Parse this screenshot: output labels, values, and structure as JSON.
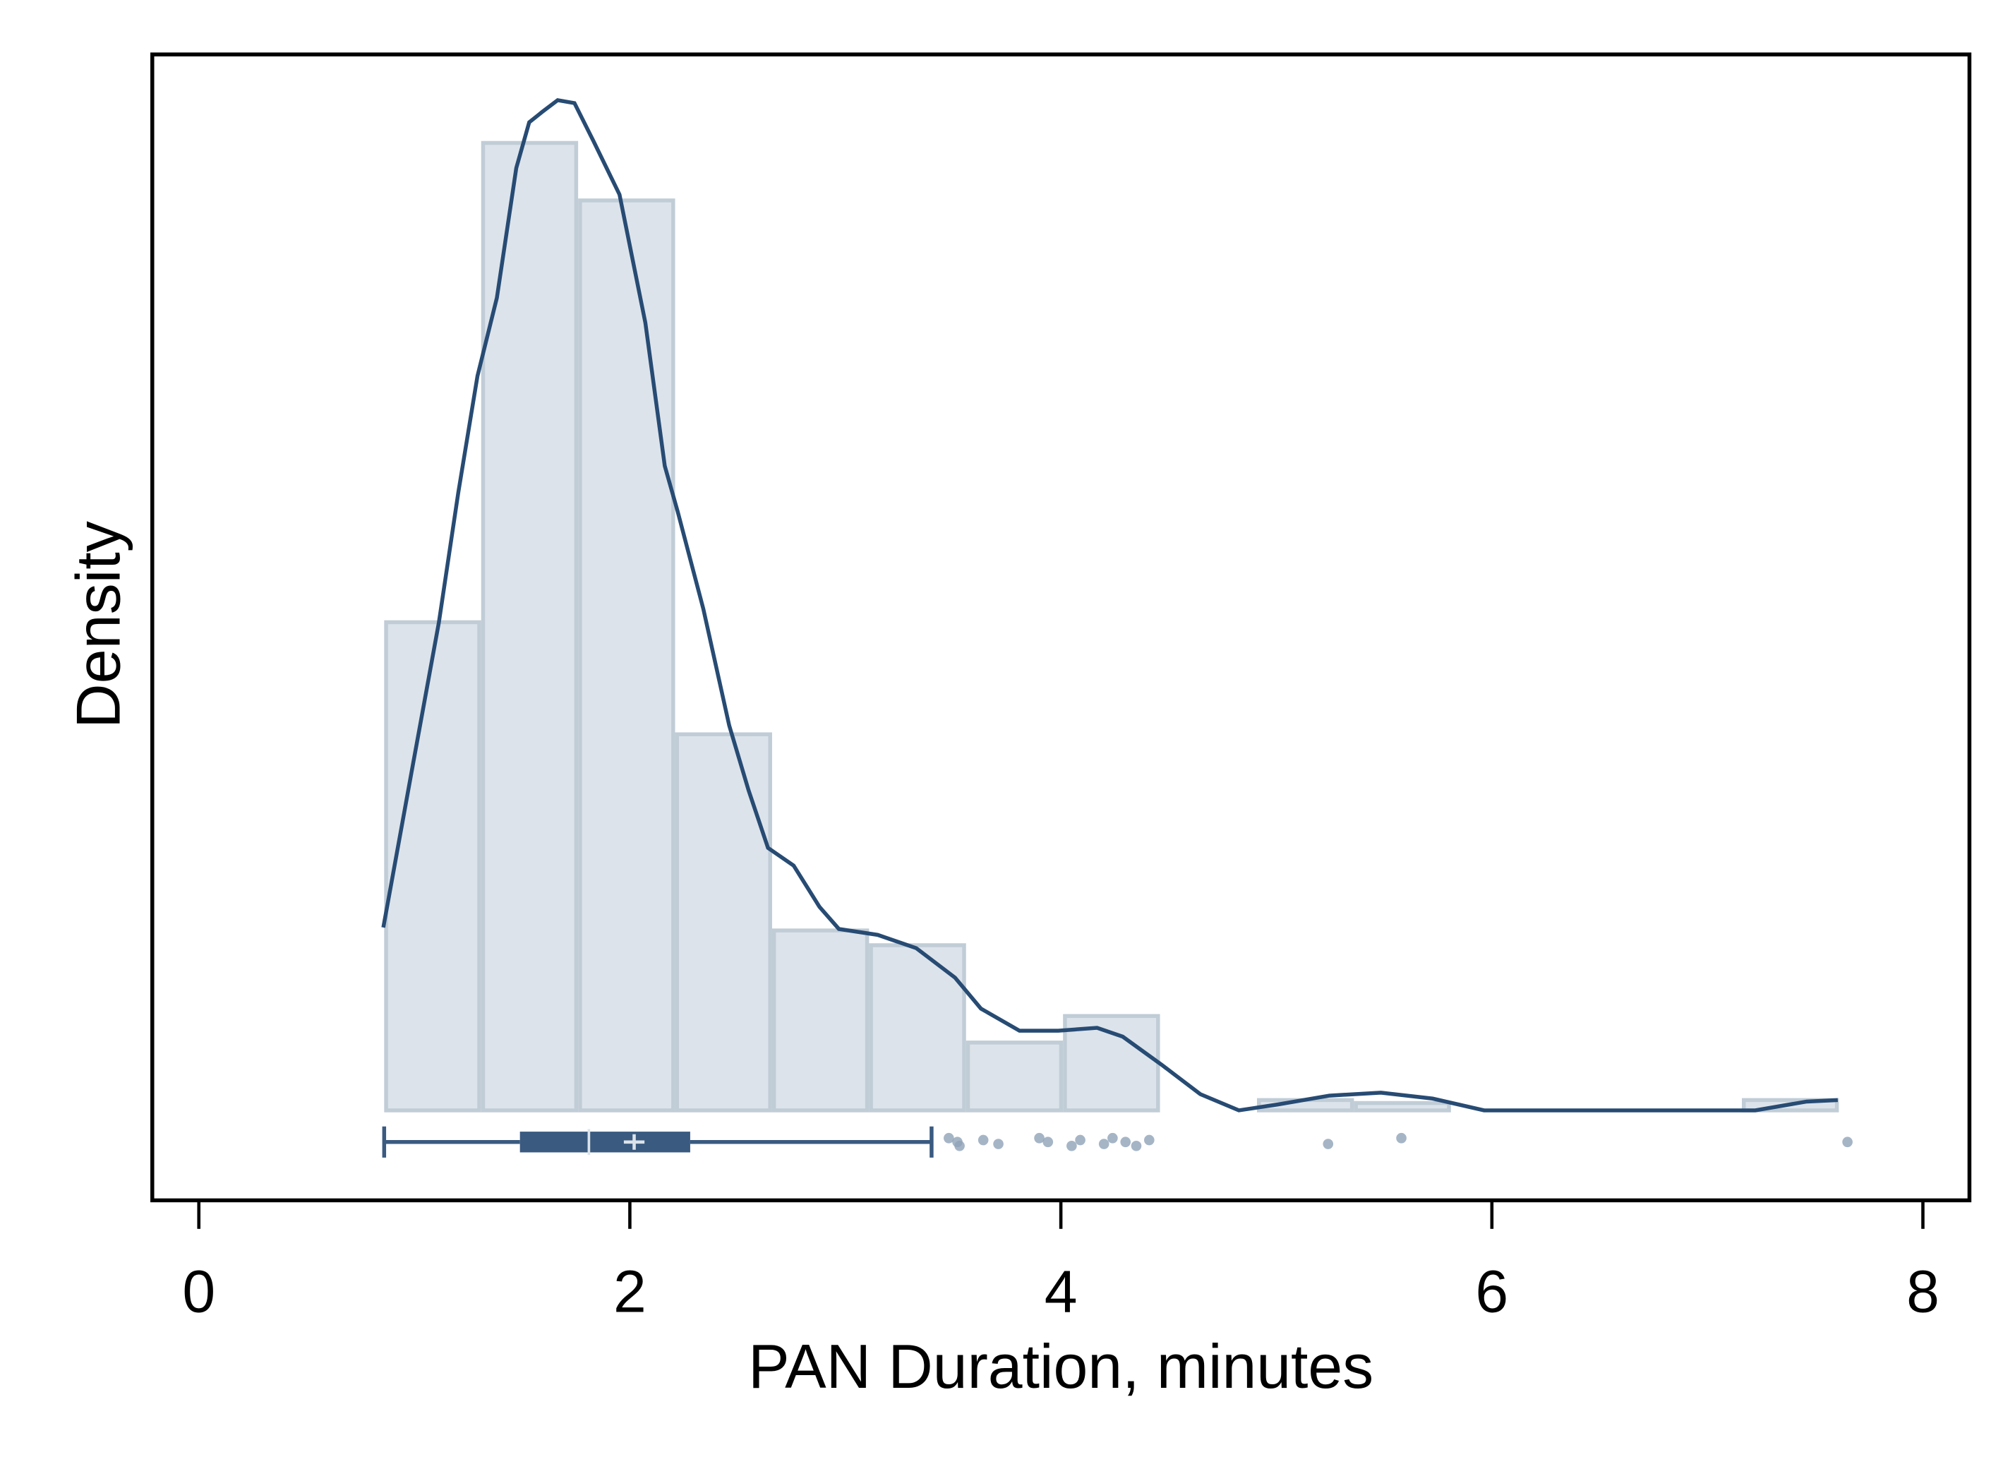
{
  "chart_data": {
    "type": "histogram",
    "x_label": "PAN Duration, minutes",
    "y_label": "Density",
    "bins": [
      0.86,
      1.31,
      1.76,
      2.21,
      2.66,
      3.11,
      3.56,
      4.01,
      4.46,
      4.91,
      5.36,
      5.81,
      6.26,
      6.71,
      7.16,
      7.61
    ],
    "values": [
      0.331,
      0.656,
      0.617,
      0.255,
      0.122,
      0.112,
      0.046,
      0.064,
      0,
      0.007,
      0.005,
      0,
      0,
      0,
      0.007
    ],
    "color": "#dce3ea",
    "edge_color": "#c0ccd6",
    "kde": {
      "color": "#274b73",
      "x": [
        0.856,
        0.994,
        1.114,
        1.204,
        1.293,
        1.383,
        1.473,
        1.533,
        1.593,
        1.665,
        1.743,
        1.832,
        1.952,
        2.072,
        2.162,
        2.222,
        2.341,
        2.461,
        2.551,
        2.641,
        2.76,
        2.88,
        2.97,
        3.15,
        3.329,
        3.509,
        3.629,
        3.808,
        3.988,
        4.168,
        4.287,
        4.467,
        4.647,
        4.826,
        5.006,
        5.246,
        5.485,
        5.725,
        5.964,
        7.222,
        7.461,
        7.605
      ],
      "y": [
        0.124,
        0.235,
        0.331,
        0.419,
        0.498,
        0.551,
        0.639,
        0.67,
        0.677,
        0.685,
        0.683,
        0.657,
        0.621,
        0.534,
        0.437,
        0.406,
        0.34,
        0.261,
        0.217,
        0.178,
        0.166,
        0.138,
        0.123,
        0.119,
        0.11,
        0.09,
        0.069,
        0.054,
        0.054,
        0.056,
        0.05,
        0.031,
        0.011,
        0,
        0.004,
        0.01,
        0.012,
        0.008,
        0,
        0,
        0.006,
        0.007
      ]
    },
    "boxplot": {
      "color": "#3a5a80",
      "whisker_low": 0.86,
      "q1": 1.49,
      "median": 1.81,
      "mean": 2.02,
      "q3": 2.28,
      "whisker_high": 3.4,
      "outliers": [
        3.48,
        3.52,
        3.53,
        3.64,
        3.71,
        3.9,
        3.94,
        4.05,
        4.09,
        4.2,
        4.24,
        4.3,
        4.35,
        4.41,
        5.24,
        5.58,
        7.65
      ]
    },
    "xlim": [
      -0.216,
      8.216
    ],
    "ylim": [
      -0.061,
      0.716
    ],
    "xticks": [
      0,
      2,
      4,
      6,
      8
    ]
  }
}
